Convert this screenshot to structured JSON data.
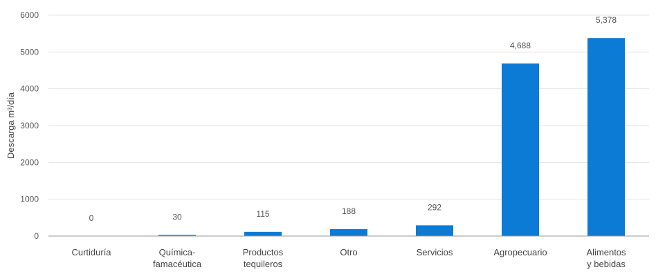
{
  "chart_data": {
    "type": "bar",
    "title": "",
    "xlabel": "",
    "ylabel": "Descarga m³/día",
    "ylim": [
      0,
      6000
    ],
    "yticks": [
      0,
      1000,
      2000,
      3000,
      4000,
      5000,
      6000
    ],
    "grid": true,
    "legend": "none",
    "bar_color": "#0b7bd6",
    "categories": [
      [
        "Curtiduría"
      ],
      [
        "Química-",
        "famacéutica"
      ],
      [
        "Productos",
        "tequileros"
      ],
      [
        "Otro"
      ],
      [
        "Servicios"
      ],
      [
        "Agropecuario"
      ],
      [
        "Alimentos",
        "y bebidas"
      ]
    ],
    "values": [
      0,
      30,
      115,
      188,
      292,
      4688,
      5378
    ],
    "data_labels": [
      "0",
      "30",
      "115",
      "188",
      "292",
      "4,688",
      "5,378"
    ]
  }
}
